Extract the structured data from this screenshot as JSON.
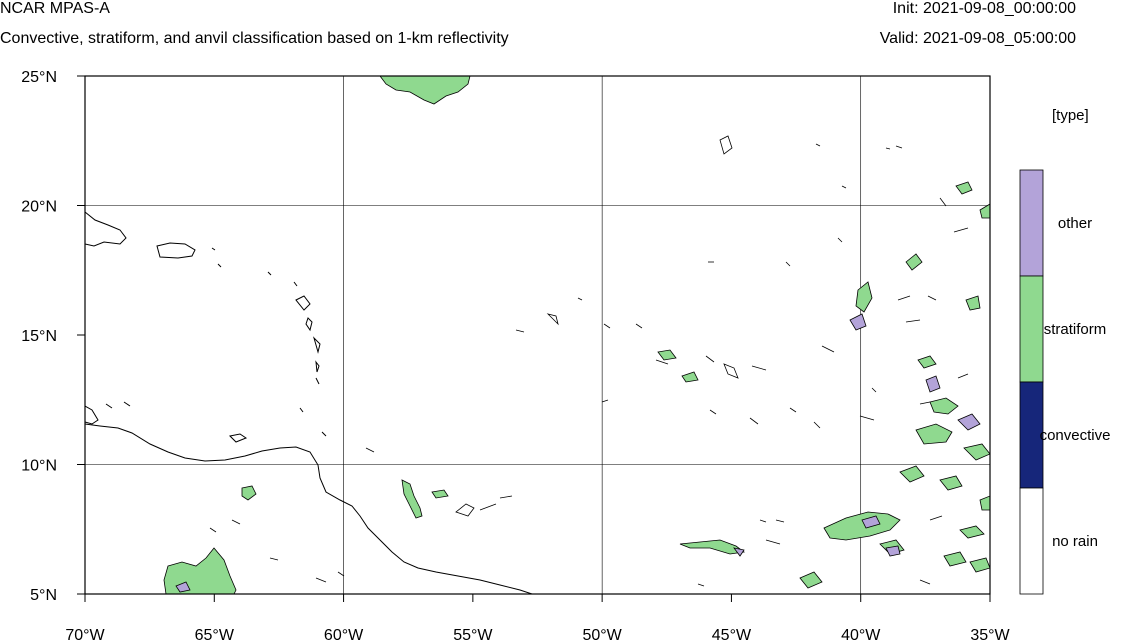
{
  "header": {
    "model": "NCAR MPAS-A",
    "subtitle": "Convective, stratiform, and anvil classification based on 1-km reflectivity",
    "init": "Init: 2021-09-08_00:00:00",
    "valid": "Valid: 2021-09-08_05:00:00"
  },
  "map": {
    "lon_range": [
      -70,
      -35
    ],
    "lat_range": [
      5,
      25
    ],
    "lon_ticks": [
      {
        "value": -70,
        "label": "70°W"
      },
      {
        "value": -65,
        "label": "65°W"
      },
      {
        "value": -60,
        "label": "60°W"
      },
      {
        "value": -55,
        "label": "55°W"
      },
      {
        "value": -50,
        "label": "50°W"
      },
      {
        "value": -45,
        "label": "45°W"
      },
      {
        "value": -40,
        "label": "40°W"
      },
      {
        "value": -35,
        "label": "35°W"
      }
    ],
    "lat_ticks": [
      {
        "value": 5,
        "label": "5°N"
      },
      {
        "value": 10,
        "label": "10°N"
      },
      {
        "value": 15,
        "label": "15°N"
      },
      {
        "value": 20,
        "label": "20°N"
      },
      {
        "value": 25,
        "label": "25°N"
      }
    ],
    "grid_lons": [
      -60,
      -50,
      -40
    ],
    "grid_lats": [
      10,
      20
    ]
  },
  "legend": {
    "title": "[type]",
    "entries": [
      {
        "label": "other",
        "color": "#b3a3d9"
      },
      {
        "label": "stratiform",
        "color": "#8fd98f"
      },
      {
        "label": "convective",
        "color": "#16267a"
      },
      {
        "label": "no rain",
        "color": "#ffffff"
      }
    ]
  }
}
